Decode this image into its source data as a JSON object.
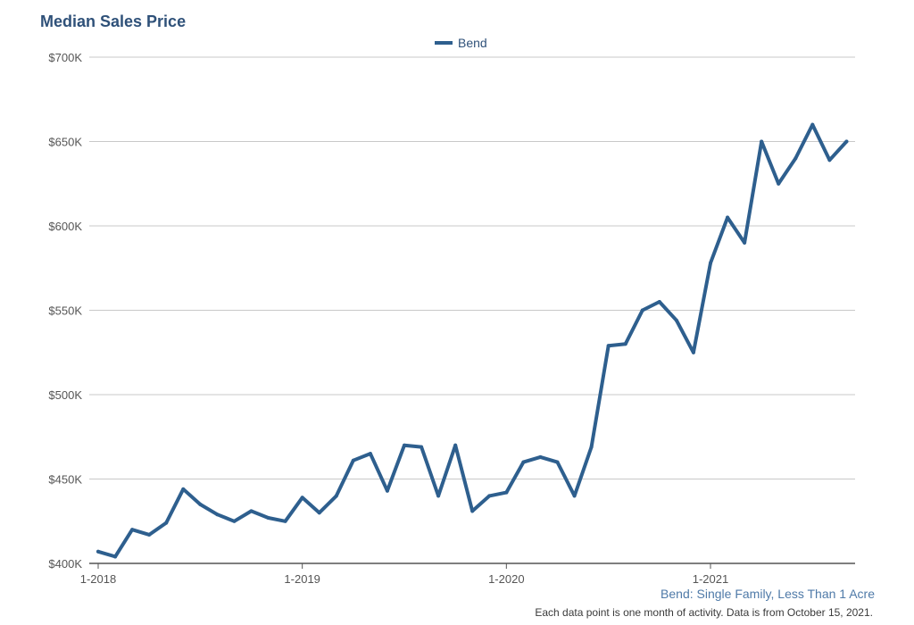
{
  "chart_data": {
    "type": "line",
    "title": "Median Sales Price",
    "subtitle": "Bend: Single Family, Less Than 1 Acre",
    "note": "Each data point is one month of activity. Data is from October 15, 2021.",
    "series": [
      {
        "name": "Bend",
        "color": "#2e5f8e",
        "values": [
          407,
          404,
          420,
          417,
          424,
          444,
          435,
          429,
          425,
          431,
          427,
          425,
          439,
          430,
          440,
          461,
          465,
          443,
          470,
          469,
          440,
          470,
          431,
          440,
          442,
          460,
          463,
          460,
          440,
          469,
          529,
          530,
          550,
          555,
          544,
          525,
          578,
          605,
          590,
          650,
          625,
          640,
          660,
          639,
          650
        ]
      }
    ],
    "x_start": "1-2018",
    "x_unit": "month",
    "x_ticks": [
      "1-2018",
      "1-2019",
      "1-2020",
      "1-2021"
    ],
    "y_unit": "$K",
    "ylim": [
      400,
      700
    ],
    "y_ticks": [
      "$400K",
      "$450K",
      "$500K",
      "$550K",
      "$600K",
      "$650K",
      "$700K"
    ],
    "grid": true,
    "legend_position": "top-center"
  }
}
